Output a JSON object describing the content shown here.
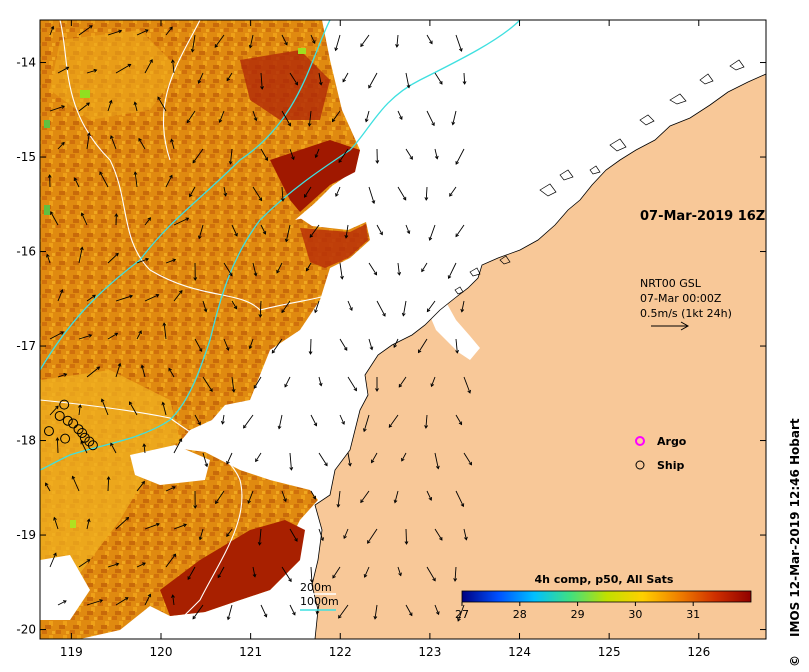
{
  "map": {
    "extent": {
      "lon_min": 118.65,
      "lon_max": 126.75,
      "lat_min": -20.1,
      "lat_max": -13.55
    },
    "lon_ticks": [
      119,
      120,
      121,
      122,
      123,
      124,
      125,
      126
    ],
    "lat_ticks": [
      -14,
      -15,
      -16,
      -17,
      -18,
      -19,
      -20
    ],
    "colors": {
      "land": "#f8c898",
      "nodata": "#ffffff",
      "isobath_200m": "#ffffff",
      "isobath_1000m": "#3fe0e0",
      "argo_marker": "#ff00ff"
    }
  },
  "overlay": {
    "date_label": "07-Mar-2019 16Z",
    "current_source": "NRT00 GSL",
    "current_time": "07-Mar 00:00Z",
    "current_scale": "0.5m/s (1kt 24h)",
    "legend_argo": "Argo",
    "legend_ship": "Ship",
    "isobath_200": "200m",
    "isobath_1000": "1000m",
    "credit": "IMOS 12-Mar-2019 12:46 Hobart",
    "credit_symbol": "©"
  },
  "colorbar": {
    "title": "4h comp, p50, All Sats",
    "ticks": [
      "27",
      "28",
      "29",
      "30",
      "31"
    ],
    "range": [
      27,
      32
    ],
    "stops": [
      "#000080",
      "#0050ff",
      "#00c0ff",
      "#40e080",
      "#c0e000",
      "#ffd000",
      "#f08000",
      "#d03000",
      "#900000"
    ]
  },
  "ships": [
    {
      "lon": 118.92,
      "lat": -17.62
    },
    {
      "lon": 118.87,
      "lat": -17.74
    },
    {
      "lon": 118.96,
      "lat": -17.79
    },
    {
      "lon": 119.02,
      "lat": -17.82
    },
    {
      "lon": 118.75,
      "lat": -17.9
    },
    {
      "lon": 119.08,
      "lat": -17.88
    },
    {
      "lon": 119.12,
      "lat": -17.92
    },
    {
      "lon": 119.15,
      "lat": -17.97
    },
    {
      "lon": 118.93,
      "lat": -17.98
    },
    {
      "lon": 119.2,
      "lat": -18.01
    },
    {
      "lon": 119.24,
      "lat": -18.05
    }
  ]
}
